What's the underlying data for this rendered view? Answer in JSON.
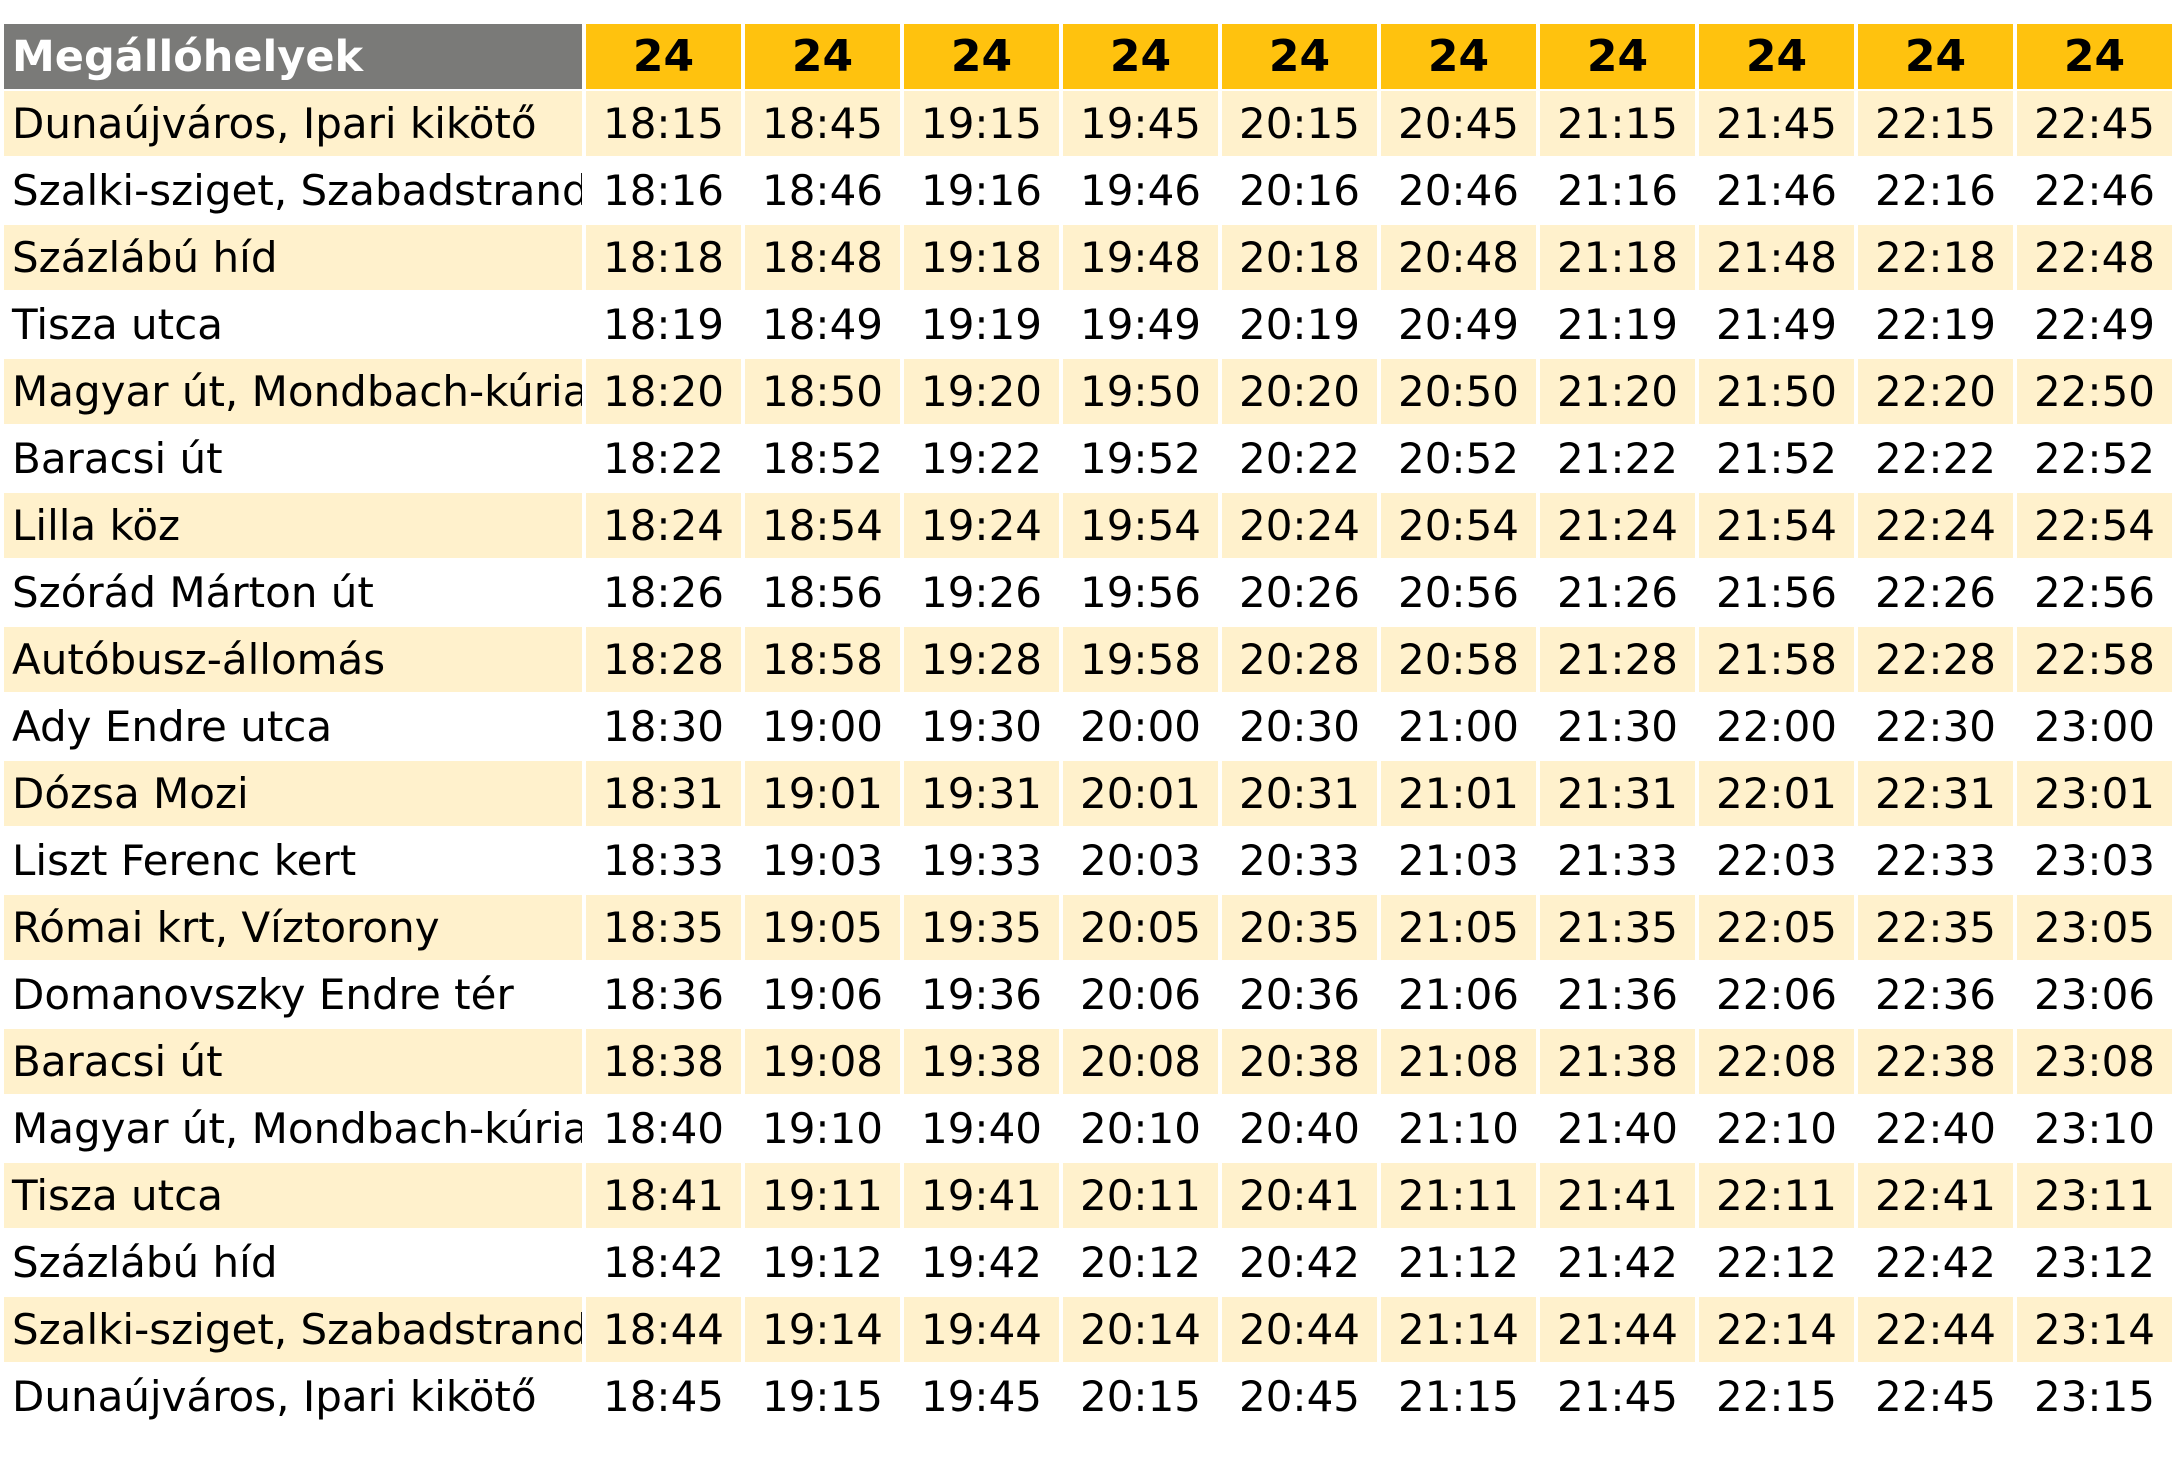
{
  "header": {
    "stops_label": "Megállóhelyek",
    "routes": [
      "24",
      "24",
      "24",
      "24",
      "24",
      "24",
      "24",
      "24",
      "24",
      "24"
    ]
  },
  "colors": {
    "header_stop_bg": "#7a7a78",
    "header_route_bg": "#ffc20e",
    "row_stripe": "#fff1cc",
    "row_plain": "#ffffff"
  },
  "rows": [
    {
      "stop": "Dunaújváros, Ipari kikötő",
      "times": [
        "18:15",
        "18:45",
        "19:15",
        "19:45",
        "20:15",
        "20:45",
        "21:15",
        "21:45",
        "22:15",
        "22:45"
      ]
    },
    {
      "stop": "Szalki-sziget, Szabadstrand",
      "times": [
        "18:16",
        "18:46",
        "19:16",
        "19:46",
        "20:16",
        "20:46",
        "21:16",
        "21:46",
        "22:16",
        "22:46"
      ]
    },
    {
      "stop": "Százlábú híd",
      "times": [
        "18:18",
        "18:48",
        "19:18",
        "19:48",
        "20:18",
        "20:48",
        "21:18",
        "21:48",
        "22:18",
        "22:48"
      ]
    },
    {
      "stop": "Tisza utca",
      "times": [
        "18:19",
        "18:49",
        "19:19",
        "19:49",
        "20:19",
        "20:49",
        "21:19",
        "21:49",
        "22:19",
        "22:49"
      ]
    },
    {
      "stop": "Magyar út, Mondbach-kúria",
      "times": [
        "18:20",
        "18:50",
        "19:20",
        "19:50",
        "20:20",
        "20:50",
        "21:20",
        "21:50",
        "22:20",
        "22:50"
      ]
    },
    {
      "stop": "Baracsi út",
      "times": [
        "18:22",
        "18:52",
        "19:22",
        "19:52",
        "20:22",
        "20:52",
        "21:22",
        "21:52",
        "22:22",
        "22:52"
      ]
    },
    {
      "stop": "Lilla köz",
      "times": [
        "18:24",
        "18:54",
        "19:24",
        "19:54",
        "20:24",
        "20:54",
        "21:24",
        "21:54",
        "22:24",
        "22:54"
      ]
    },
    {
      "stop": "Szórád Márton út",
      "times": [
        "18:26",
        "18:56",
        "19:26",
        "19:56",
        "20:26",
        "20:56",
        "21:26",
        "21:56",
        "22:26",
        "22:56"
      ]
    },
    {
      "stop": "Autóbusz-állomás",
      "times": [
        "18:28",
        "18:58",
        "19:28",
        "19:58",
        "20:28",
        "20:58",
        "21:28",
        "21:58",
        "22:28",
        "22:58"
      ]
    },
    {
      "stop": "Ady Endre utca",
      "times": [
        "18:30",
        "19:00",
        "19:30",
        "20:00",
        "20:30",
        "21:00",
        "21:30",
        "22:00",
        "22:30",
        "23:00"
      ]
    },
    {
      "stop": "Dózsa Mozi",
      "times": [
        "18:31",
        "19:01",
        "19:31",
        "20:01",
        "20:31",
        "21:01",
        "21:31",
        "22:01",
        "22:31",
        "23:01"
      ]
    },
    {
      "stop": "Liszt Ferenc kert",
      "times": [
        "18:33",
        "19:03",
        "19:33",
        "20:03",
        "20:33",
        "21:03",
        "21:33",
        "22:03",
        "22:33",
        "23:03"
      ]
    },
    {
      "stop": "Római krt, Víztorony",
      "times": [
        "18:35",
        "19:05",
        "19:35",
        "20:05",
        "20:35",
        "21:05",
        "21:35",
        "22:05",
        "22:35",
        "23:05"
      ]
    },
    {
      "stop": "Domanovszky Endre tér",
      "times": [
        "18:36",
        "19:06",
        "19:36",
        "20:06",
        "20:36",
        "21:06",
        "21:36",
        "22:06",
        "22:36",
        "23:06"
      ]
    },
    {
      "stop": "Baracsi út",
      "times": [
        "18:38",
        "19:08",
        "19:38",
        "20:08",
        "20:38",
        "21:08",
        "21:38",
        "22:08",
        "22:38",
        "23:08"
      ]
    },
    {
      "stop": "Magyar út, Mondbach-kúria",
      "times": [
        "18:40",
        "19:10",
        "19:40",
        "20:10",
        "20:40",
        "21:10",
        "21:40",
        "22:10",
        "22:40",
        "23:10"
      ]
    },
    {
      "stop": "Tisza utca",
      "times": [
        "18:41",
        "19:11",
        "19:41",
        "20:11",
        "20:41",
        "21:11",
        "21:41",
        "22:11",
        "22:41",
        "23:11"
      ]
    },
    {
      "stop": "Százlábú híd",
      "times": [
        "18:42",
        "19:12",
        "19:42",
        "20:12",
        "20:42",
        "21:12",
        "21:42",
        "22:12",
        "22:42",
        "23:12"
      ]
    },
    {
      "stop": "Szalki-sziget, Szabadstrand",
      "times": [
        "18:44",
        "19:14",
        "19:44",
        "20:14",
        "20:44",
        "21:14",
        "21:44",
        "22:14",
        "22:44",
        "23:14"
      ]
    },
    {
      "stop": "Dunaújváros, Ipari kikötő",
      "times": [
        "18:45",
        "19:15",
        "19:45",
        "20:15",
        "20:45",
        "21:15",
        "21:45",
        "22:15",
        "22:45",
        "23:15"
      ]
    }
  ]
}
